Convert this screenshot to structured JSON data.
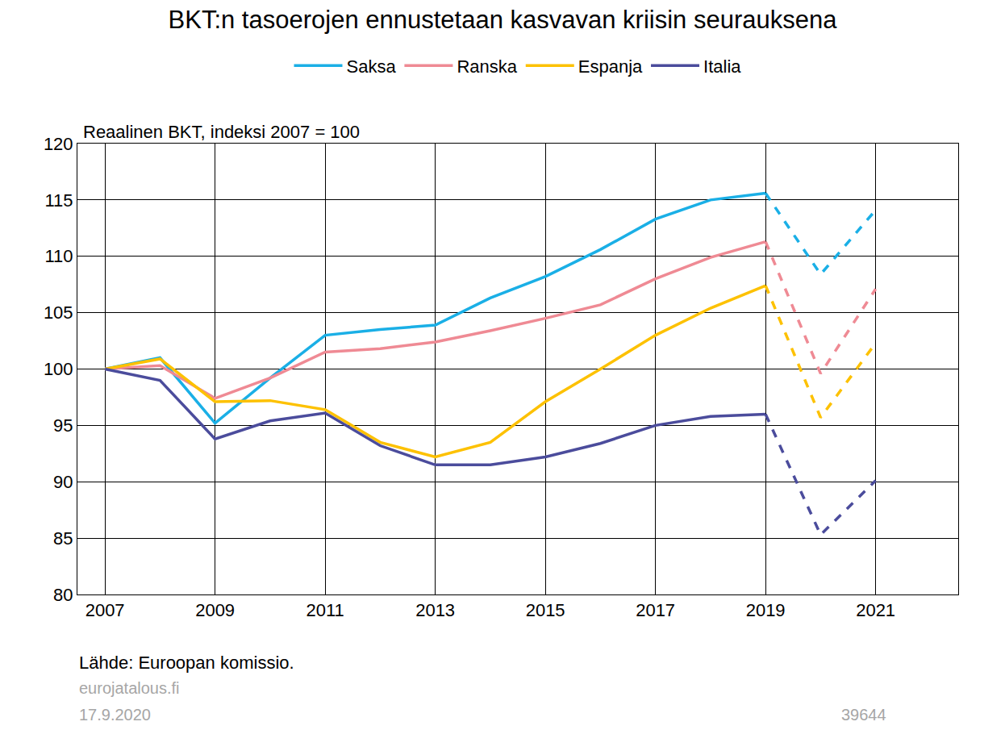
{
  "chart_data": {
    "type": "line",
    "title": "BKT:n tasoerojen ennustetaan kasvavan kriisin seurauksena",
    "y_label": "Reaalinen BKT, indeksi 2007 = 100",
    "source": "Lähde: Euroopan komissio.",
    "footer": [
      "eurojatalous.fi",
      "17.9.2020"
    ],
    "chart_id": "39644",
    "x": [
      2007,
      2008,
      2009,
      2010,
      2011,
      2012,
      2013,
      2014,
      2015,
      2016,
      2017,
      2018,
      2019,
      2020,
      2021
    ],
    "xlim": [
      2006.5,
      2022.5
    ],
    "xticks": [
      2007,
      2009,
      2011,
      2013,
      2015,
      2017,
      2019,
      2021
    ],
    "ylim": [
      80,
      120
    ],
    "yticks": [
      80,
      85,
      90,
      95,
      100,
      105,
      110,
      115,
      120
    ],
    "grid": true,
    "legend": "top",
    "series": [
      {
        "name": "Saksa",
        "color": "#1aafe6",
        "line_style": "solid",
        "values": [
          100,
          101.0,
          95.2,
          99.2,
          103.0,
          103.5,
          103.9,
          106.3,
          108.2,
          110.6,
          113.3,
          115.0,
          115.6,
          null,
          null
        ]
      },
      {
        "name": "Ranska",
        "color": "#ef8a94",
        "line_style": "solid",
        "values": [
          100,
          100.3,
          97.4,
          99.2,
          101.5,
          101.8,
          102.4,
          103.4,
          104.5,
          105.7,
          108.0,
          109.9,
          111.3,
          null,
          null
        ]
      },
      {
        "name": "Espanja",
        "color": "#fdc100",
        "line_style": "solid",
        "values": [
          100,
          100.9,
          97.1,
          97.2,
          96.4,
          93.5,
          92.2,
          93.5,
          97.1,
          100.0,
          103.0,
          105.4,
          107.4,
          null,
          null
        ]
      },
      {
        "name": "Italia",
        "color": "#4b4c9c",
        "line_style": "solid",
        "values": [
          100,
          99.0,
          93.8,
          95.4,
          96.1,
          93.2,
          91.5,
          91.5,
          92.2,
          93.4,
          95.0,
          95.8,
          96.0,
          null,
          null
        ]
      },
      {
        "name": "Saksa",
        "color": "#1aafe6",
        "line_style": "dashed",
        "values": [
          null,
          null,
          null,
          null,
          null,
          null,
          null,
          null,
          null,
          null,
          null,
          null,
          115.6,
          108.4,
          114.1
        ]
      },
      {
        "name": "Ranska",
        "color": "#ef8a94",
        "line_style": "dashed",
        "values": [
          null,
          null,
          null,
          null,
          null,
          null,
          null,
          null,
          null,
          null,
          null,
          null,
          111.3,
          99.6,
          107.1
        ]
      },
      {
        "name": "Espanja",
        "color": "#fdc100",
        "line_style": "dashed",
        "values": [
          null,
          null,
          null,
          null,
          null,
          null,
          null,
          null,
          null,
          null,
          null,
          null,
          107.4,
          95.7,
          102.3
        ]
      },
      {
        "name": "Italia",
        "color": "#4b4c9c",
        "line_style": "dashed",
        "values": [
          null,
          null,
          null,
          null,
          null,
          null,
          null,
          null,
          null,
          null,
          null,
          null,
          96.0,
          85.3,
          90.1
        ]
      }
    ]
  }
}
